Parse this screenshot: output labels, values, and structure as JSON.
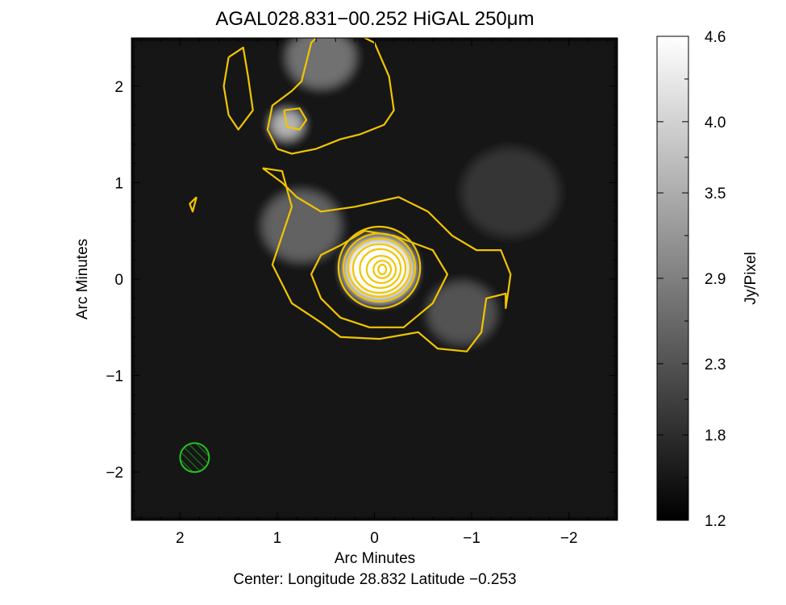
{
  "chart_data": {
    "type": "heatmap",
    "title": "AGAL028.831−00.252 HiGAL 250μm",
    "xlabel": "Arc Minutes",
    "ylabel": "Arc Minutes",
    "subtitle": "Center:  Longitude 28.832 Latitude −0.253",
    "x_axis": {
      "reversed": true,
      "range": [
        2.5,
        -2.5
      ],
      "ticks": [
        2,
        1,
        0,
        -1,
        -2
      ],
      "tick_labels": [
        "2",
        "1",
        "0",
        "−1",
        "−2"
      ]
    },
    "y_axis": {
      "range": [
        -2.5,
        2.5
      ],
      "ticks": [
        2,
        1,
        0,
        -1,
        -2
      ],
      "tick_labels": [
        "2",
        "1",
        "0",
        "−1",
        "−2"
      ]
    },
    "colorbar": {
      "label": "Jy/Pixel",
      "range": [
        1.2,
        4.6
      ],
      "colormap": "grayscale",
      "ticks": [
        4.6,
        4.0,
        3.5,
        2.9,
        2.3,
        1.8,
        1.2
      ],
      "tick_labels": [
        "4.6",
        "4.0",
        "3.5",
        "2.9",
        "2.3",
        "1.8",
        "1.2"
      ]
    },
    "image_features": [
      {
        "name": "central source",
        "x": -0.05,
        "y": 0.1,
        "peak": 4.6,
        "width": 0.35
      },
      {
        "name": "northern knot",
        "x": 0.9,
        "y": 1.6,
        "peak": 3.6,
        "width": 0.16
      },
      {
        "name": "northern filament",
        "x": 0.55,
        "y": 2.3,
        "peak": 2.7,
        "width": 0.35
      },
      {
        "name": "connecting ridge",
        "x": 0.75,
        "y": 0.55,
        "peak": 2.5,
        "width": 0.4
      },
      {
        "name": "eastern extension",
        "x": -0.9,
        "y": -0.35,
        "peak": 2.3,
        "width": 0.35
      },
      {
        "name": "western arc",
        "x": -1.4,
        "y": 0.9,
        "peak": 1.9,
        "width": 0.5
      }
    ],
    "contours": {
      "color": "#f2c500",
      "outer": [
        [
          1.15,
          1.15
        ],
        [
          0.95,
          1.12
        ],
        [
          0.85,
          0.75
        ],
        [
          0.95,
          0.45
        ],
        [
          1.05,
          0.15
        ],
        [
          0.85,
          -0.25
        ],
        [
          0.55,
          -0.45
        ],
        [
          0.35,
          -0.6
        ],
        [
          -0.05,
          -0.62
        ],
        [
          -0.45,
          -0.55
        ],
        [
          -0.65,
          -0.72
        ],
        [
          -0.95,
          -0.75
        ],
        [
          -1.1,
          -0.55
        ],
        [
          -1.15,
          -0.2
        ],
        [
          -1.35,
          -0.15
        ],
        [
          -1.35,
          -0.3
        ],
        [
          -1.38,
          -0.1
        ],
        [
          -1.4,
          0.05
        ],
        [
          -1.3,
          0.3
        ],
        [
          -1.05,
          0.3
        ],
        [
          -0.8,
          0.45
        ],
        [
          -0.55,
          0.7
        ],
        [
          -0.25,
          0.85
        ],
        [
          0.2,
          0.75
        ],
        [
          0.55,
          0.7
        ],
        [
          0.8,
          0.85
        ],
        [
          0.95,
          1.0
        ],
        [
          1.15,
          1.15
        ]
      ],
      "inner": [
        [
          0.35,
          0.35
        ],
        [
          0.1,
          0.5
        ],
        [
          -0.2,
          0.45
        ],
        [
          -0.6,
          0.3
        ],
        [
          -0.75,
          0.05
        ],
        [
          -0.6,
          -0.25
        ],
        [
          -0.3,
          -0.5
        ],
        [
          0.05,
          -0.5
        ],
        [
          0.35,
          -0.4
        ],
        [
          0.55,
          -0.2
        ],
        [
          0.65,
          0.05
        ],
        [
          0.55,
          0.25
        ],
        [
          0.35,
          0.35
        ]
      ],
      "nested_levels": [
        {
          "x": -0.05,
          "y": 0.12,
          "rx": 0.42,
          "ry": 0.42
        },
        {
          "x": -0.05,
          "y": 0.12,
          "rx": 0.37,
          "ry": 0.35
        },
        {
          "x": -0.05,
          "y": 0.12,
          "rx": 0.32,
          "ry": 0.3
        },
        {
          "x": -0.05,
          "y": 0.11,
          "rx": 0.27,
          "ry": 0.25
        },
        {
          "x": -0.06,
          "y": 0.11,
          "rx": 0.21,
          "ry": 0.2
        },
        {
          "x": -0.07,
          "y": 0.1,
          "rx": 0.15,
          "ry": 0.14
        },
        {
          "x": -0.08,
          "y": 0.1,
          "rx": 0.09,
          "ry": 0.09
        },
        {
          "x": -0.08,
          "y": 0.1,
          "rx": 0.04,
          "ry": 0.05
        }
      ],
      "north": [
        [
          1.0,
          1.35
        ],
        [
          1.1,
          1.55
        ],
        [
          1.05,
          1.8
        ],
        [
          0.85,
          1.95
        ],
        [
          0.75,
          2.05
        ],
        [
          0.65,
          2.45
        ],
        [
          0.55,
          2.55
        ],
        [
          0.2,
          2.55
        ],
        [
          0.0,
          2.45
        ],
        [
          -0.15,
          2.1
        ],
        [
          -0.2,
          1.75
        ],
        [
          -0.1,
          1.6
        ],
        [
          0.15,
          1.5
        ],
        [
          0.35,
          1.45
        ],
        [
          0.6,
          1.35
        ],
        [
          0.85,
          1.3
        ],
        [
          1.0,
          1.35
        ]
      ],
      "north_left": [
        [
          1.5,
          2.3
        ],
        [
          1.35,
          2.4
        ],
        [
          1.3,
          2.1
        ],
        [
          1.25,
          1.75
        ],
        [
          1.4,
          1.55
        ],
        [
          1.5,
          1.7
        ],
        [
          1.55,
          2.0
        ],
        [
          1.5,
          2.3
        ]
      ],
      "knot": [
        [
          0.93,
          1.75
        ],
        [
          0.77,
          1.77
        ],
        [
          0.7,
          1.65
        ],
        [
          0.77,
          1.55
        ],
        [
          0.9,
          1.58
        ],
        [
          0.93,
          1.75
        ]
      ],
      "small": [
        [
          1.83,
          0.85
        ],
        [
          1.9,
          0.78
        ],
        [
          1.87,
          0.7
        ],
        [
          1.83,
          0.85
        ]
      ]
    },
    "beam": {
      "x": 1.85,
      "y": -1.85,
      "color": "#22c322",
      "hatched": true
    }
  }
}
